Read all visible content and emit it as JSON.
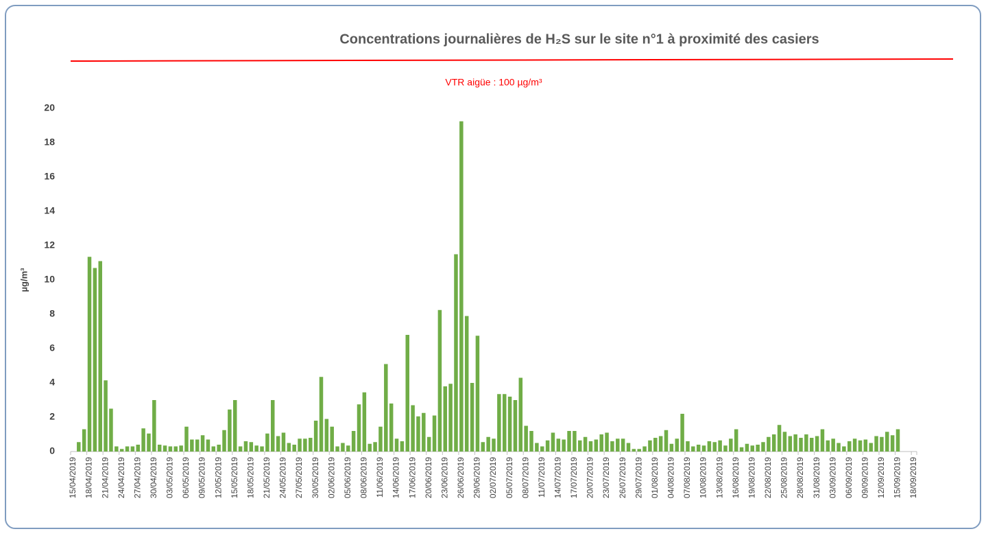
{
  "chart_data": {
    "type": "bar",
    "title": "Concentrations journalières de H₂S sur le site n°1 à proximité des casiers",
    "y_label": "µg/m³",
    "annotation": "VTR aigüe : 100 µg/m³",
    "annotation_color": "#ff0000",
    "color": "#70ad47",
    "ylim": [
      0,
      20
    ],
    "yticks": [
      0,
      2,
      4,
      6,
      8,
      10,
      12,
      14,
      16,
      18,
      20
    ],
    "grid": false,
    "categories": [
      "15/04/2019",
      null,
      null,
      "18/04/2019",
      null,
      null,
      "21/04/2019",
      null,
      null,
      "24/04/2019",
      null,
      null,
      "27/04/2019",
      null,
      null,
      "30/04/2019",
      null,
      null,
      "03/05/2019",
      null,
      null,
      "06/05/2019",
      null,
      null,
      "09/05/2019",
      null,
      null,
      "12/05/2019",
      null,
      null,
      "15/05/2019",
      null,
      null,
      "18/05/2019",
      null,
      null,
      "21/05/2019",
      null,
      null,
      "24/05/2019",
      null,
      null,
      "27/05/2019",
      null,
      null,
      "30/05/2019",
      null,
      null,
      "02/06/2019",
      null,
      null,
      "05/06/2019",
      null,
      null,
      "08/06/2019",
      null,
      null,
      "11/06/2019",
      null,
      null,
      "14/06/2019",
      null,
      null,
      "17/06/2019",
      null,
      null,
      "20/06/2019",
      null,
      null,
      "23/06/2019",
      null,
      null,
      "26/06/2019",
      null,
      null,
      "29/06/2019",
      null,
      null,
      "02/07/2019",
      null,
      null,
      "05/07/2019",
      null,
      null,
      "08/07/2019",
      null,
      null,
      "11/07/2019",
      null,
      null,
      "14/07/2019",
      null,
      null,
      "17/07/2019",
      null,
      null,
      "20/07/2019",
      null,
      null,
      "23/07/2019",
      null,
      null,
      "26/07/2019",
      null,
      null,
      "29/07/2019",
      null,
      null,
      "01/08/2019",
      null,
      null,
      "04/08/2019",
      null,
      null,
      "07/08/2019",
      null,
      null,
      "10/08/2019",
      null,
      null,
      "13/08/2019",
      null,
      null,
      "16/08/2019",
      null,
      null,
      "19/08/2019",
      null,
      null,
      "22/08/2019",
      null,
      null,
      "25/08/2019",
      null,
      null,
      "28/08/2019",
      null,
      null,
      "31/08/2019",
      null,
      null,
      "03/09/2019",
      null,
      null,
      "06/09/2019",
      null,
      null,
      "09/09/2019",
      null,
      null,
      "12/09/2019",
      null,
      null,
      "15/09/2019",
      null,
      null,
      "18/09/2019"
    ],
    "values": [
      null,
      0.55,
      1.3,
      11.35,
      10.7,
      11.1,
      4.15,
      2.5,
      0.3,
      0.15,
      0.3,
      0.3,
      0.4,
      1.35,
      1.05,
      3.0,
      0.4,
      0.35,
      0.3,
      0.3,
      0.35,
      1.45,
      0.7,
      0.7,
      0.95,
      0.7,
      0.3,
      0.4,
      1.25,
      2.45,
      3.0,
      0.3,
      0.6,
      0.55,
      0.35,
      0.3,
      1.05,
      3.0,
      0.9,
      1.1,
      0.5,
      0.4,
      0.75,
      0.75,
      0.8,
      1.8,
      4.35,
      1.9,
      1.45,
      0.3,
      0.5,
      0.35,
      1.2,
      2.75,
      3.45,
      0.45,
      0.55,
      1.45,
      5.1,
      2.8,
      0.75,
      0.6,
      6.8,
      2.7,
      2.05,
      2.25,
      0.85,
      2.1,
      8.25,
      3.8,
      3.95,
      11.5,
      19.25,
      7.9,
      4.0,
      6.75,
      0.55,
      0.85,
      0.75,
      3.35,
      3.35,
      3.2,
      3.0,
      4.3,
      1.5,
      1.2,
      0.5,
      0.3,
      0.65,
      1.1,
      0.75,
      0.7,
      1.2,
      1.2,
      0.65,
      0.85,
      0.6,
      0.7,
      1.0,
      1.1,
      0.6,
      0.75,
      0.75,
      0.5,
      0.15,
      0.15,
      0.3,
      0.65,
      0.8,
      0.9,
      1.25,
      0.45,
      0.75,
      2.2,
      0.6,
      0.3,
      0.4,
      0.35,
      0.6,
      0.55,
      0.65,
      0.35,
      0.75,
      1.3,
      0.25,
      0.45,
      0.35,
      0.4,
      0.55,
      0.85,
      1.0,
      1.55,
      1.15,
      0.9,
      1.0,
      0.8,
      1.0,
      0.8,
      0.9,
      1.3,
      0.65,
      0.75,
      0.5,
      0.3,
      0.6,
      0.75,
      0.65,
      0.7,
      0.5,
      0.9,
      0.85,
      1.15,
      0.95,
      1.3,
      null,
      null,
      null
    ]
  }
}
